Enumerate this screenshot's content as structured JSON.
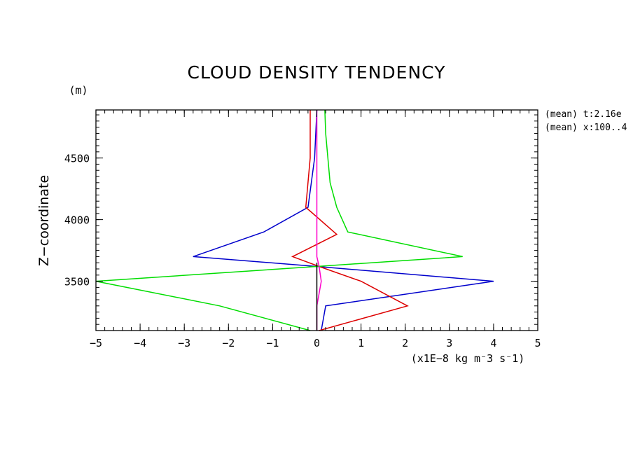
{
  "chart_data": {
    "type": "line",
    "title": "CLOUD DENSITY TENDENCY",
    "y_unit": "(m)",
    "ylabel": "Z−coordinate",
    "xlabel": "(x1E−8 kg m⁻3 s⁻1)",
    "xlim": [
      -5,
      5
    ],
    "ylim": [
      3100,
      4890
    ],
    "x_ticks": [
      -5,
      -4,
      -3,
      -2,
      -1,
      0,
      1,
      2,
      3,
      4,
      5
    ],
    "x_tick_labels": [
      "−5",
      "−4",
      "−3",
      "−2",
      "−1",
      "0",
      "1",
      "2",
      "3",
      "4",
      "5"
    ],
    "y_ticks": [
      3500,
      4000,
      4500
    ],
    "y_tick_labels": [
      "3500",
      "4000",
      "4500"
    ],
    "annotations": [
      "(mean) t:2.16e",
      "(mean) x:100..4"
    ],
    "grid": false,
    "series": [
      {
        "color": "#0000cc",
        "x": [
          0.1,
          0.2,
          4.0,
          0.0,
          -2.8,
          -1.2,
          -0.2,
          -0.05,
          0.0
        ],
        "y": [
          3100,
          3300,
          3500,
          3620,
          3700,
          3900,
          4100,
          4500,
          4890
        ]
      },
      {
        "color": "#dd0000",
        "x": [
          0.05,
          2.05,
          1.0,
          0.05,
          -0.55,
          0.45,
          -0.25,
          -0.15,
          -0.15
        ],
        "y": [
          3100,
          3300,
          3500,
          3620,
          3700,
          3880,
          4100,
          4500,
          4890
        ]
      },
      {
        "color": "#00dd00",
        "x": [
          -0.15,
          -2.2,
          -5.0,
          0.0,
          3.3,
          0.7,
          0.45,
          0.3,
          0.2,
          0.18
        ],
        "y": [
          3100,
          3300,
          3500,
          3620,
          3700,
          3900,
          4100,
          4300,
          4700,
          4890
        ]
      },
      {
        "color": "#ff00cc",
        "x": [
          0.0,
          0.0,
          0.05,
          0.1,
          0.05,
          0.0,
          0.0,
          0.0,
          0.0
        ],
        "y": [
          3100,
          3300,
          3400,
          3500,
          3620,
          3700,
          4000,
          4500,
          4890
        ]
      },
      {
        "color": "#000000",
        "x": [
          0.0,
          0.0
        ],
        "y": [
          3100,
          3650
        ]
      }
    ]
  }
}
